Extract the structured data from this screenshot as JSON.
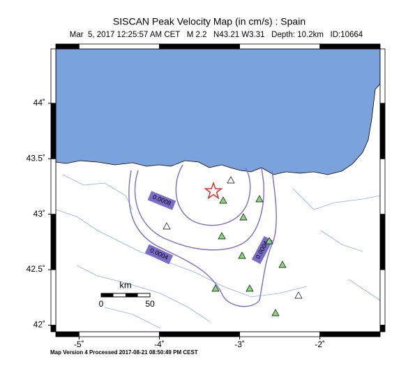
{
  "header": {
    "title": "SISCAN Peak Velocity Map (in cm/s) : Spain",
    "subtitle": "Mar  5, 2017 12:25:57 AM CET   M 2.2   N43.21 W3.31   Depth: 10.2km   ID:10664"
  },
  "map": {
    "xlim": [
      -5.29,
      -1.25
    ],
    "ylim": [
      41.94,
      44.49
    ],
    "xticks": [
      {
        "value": -5,
        "label": "-5˚"
      },
      {
        "value": -4,
        "label": "-4˚"
      },
      {
        "value": -3,
        "label": "-3˚"
      },
      {
        "value": -2,
        "label": "-2˚"
      }
    ],
    "yticks": [
      {
        "value": 42,
        "label": "42˚"
      },
      {
        "value": 42.5,
        "label": "42.5˚"
      },
      {
        "value": 43,
        "label": "43˚"
      },
      {
        "value": 43.5,
        "label": "43.5˚"
      },
      {
        "value": 44,
        "label": "44˚"
      }
    ],
    "scale_bar": {
      "unit": "km",
      "start": "0",
      "end": "50"
    },
    "contour_labels": [
      "0.0008",
      "0.0004",
      "0.0004"
    ]
  },
  "footer": "Map Version 4 Processed 2017-08-21 08:50:49 PM CEST"
}
